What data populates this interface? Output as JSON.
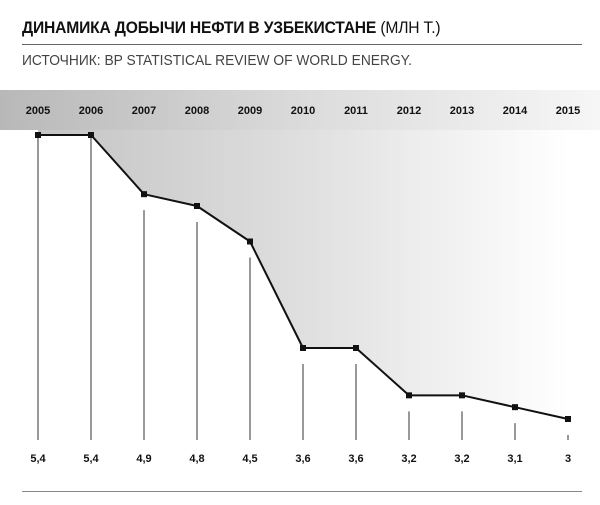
{
  "header": {
    "title_main": "ДИНАМИКА ДОБЫЧИ НЕФТИ В УЗБЕКИСТАНЕ",
    "title_unit": "(МЛН Т.)",
    "source": "ИСТОЧНИК: BP STATISTICAL REVIEW OF WORLD ENERGY."
  },
  "chart_data": {
    "type": "line",
    "title": "ДИНАМИКА ДОБЫЧИ НЕФТИ В УЗБЕКИСТАНЕ (МЛН Т.)",
    "x": [
      "2005",
      "2006",
      "2007",
      "2008",
      "2009",
      "2010",
      "2011",
      "2012",
      "2013",
      "2014",
      "2015"
    ],
    "values": [
      5.4,
      5.4,
      4.9,
      4.8,
      4.5,
      3.6,
      3.6,
      3.2,
      3.2,
      3.1,
      3.0
    ],
    "value_labels": [
      "5,4",
      "5,4",
      "4,9",
      "4,8",
      "4,5",
      "3,6",
      "3,6",
      "3,2",
      "3,2",
      "3,1",
      "3"
    ],
    "xlabel": "",
    "ylabel": "",
    "grid": false,
    "colors": {
      "line": "#111111",
      "band": "#cfcfcf",
      "area_fill": "#d4d4d4"
    }
  }
}
